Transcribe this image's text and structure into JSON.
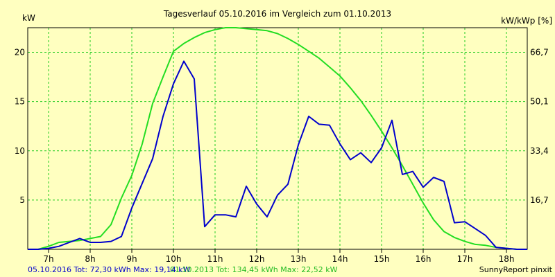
{
  "chart_data": {
    "type": "line",
    "title": "Tagesverlauf 05.10.2016 im Vergleich zum 01.10.2013",
    "ylabel_left": "kW",
    "ylabel_right": "kW/kWp [%]",
    "xlim": [
      6.5,
      18.5
    ],
    "ylim": [
      0,
      22.5
    ],
    "grid": true,
    "x_ticks": [
      {
        "x": 7,
        "label": "7h"
      },
      {
        "x": 8,
        "label": "8h"
      },
      {
        "x": 9,
        "label": "9h"
      },
      {
        "x": 10,
        "label": "10h"
      },
      {
        "x": 11,
        "label": "11h"
      },
      {
        "x": 12,
        "label": "12h"
      },
      {
        "x": 13,
        "label": "13h"
      },
      {
        "x": 14,
        "label": "14h"
      },
      {
        "x": 15,
        "label": "15h"
      },
      {
        "x": 16,
        "label": "16h"
      },
      {
        "x": 17,
        "label": "17h"
      },
      {
        "x": 18,
        "label": "18h"
      }
    ],
    "y_ticks_left": [
      {
        "y": 5,
        "label": "5"
      },
      {
        "y": 10,
        "label": "10"
      },
      {
        "y": 15,
        "label": "15"
      },
      {
        "y": 20,
        "label": "20"
      }
    ],
    "y_ticks_right": [
      {
        "y": 5,
        "label": "16,7"
      },
      {
        "y": 10,
        "label": "33,4"
      },
      {
        "y": 15,
        "label": "50,1"
      },
      {
        "y": 20,
        "label": "66,7"
      }
    ],
    "series": [
      {
        "name": "05.10.2016",
        "color": "#0000cc",
        "x": [
          6.5,
          6.75,
          7.0,
          7.25,
          7.5,
          7.75,
          8.0,
          8.25,
          8.5,
          8.75,
          9.0,
          9.25,
          9.5,
          9.75,
          10.0,
          10.25,
          10.5,
          10.75,
          11.0,
          11.25,
          11.5,
          11.75,
          12.0,
          12.25,
          12.5,
          12.75,
          13.0,
          13.25,
          13.5,
          13.75,
          14.0,
          14.25,
          14.5,
          14.75,
          15.0,
          15.25,
          15.5,
          15.75,
          16.0,
          16.25,
          16.5,
          16.75,
          17.0,
          17.25,
          17.5,
          17.75,
          18.0,
          18.25,
          18.5
        ],
        "y": [
          0,
          0,
          0.1,
          0.3,
          0.7,
          1.1,
          0.7,
          0.7,
          0.8,
          1.3,
          4.2,
          6.7,
          9.2,
          13.5,
          16.8,
          19.1,
          17.3,
          2.3,
          3.5,
          3.5,
          3.3,
          6.4,
          4.6,
          3.3,
          5.5,
          6.6,
          10.6,
          13.5,
          12.7,
          12.6,
          10.7,
          9.1,
          9.8,
          8.8,
          10.3,
          13.1,
          7.6,
          7.9,
          6.3,
          7.3,
          6.9,
          2.7,
          2.8,
          2.1,
          1.4,
          0.2,
          0.1,
          0,
          0
        ]
      },
      {
        "name": "01.10.2013",
        "color": "#22dd22",
        "x": [
          6.5,
          6.75,
          7.0,
          7.25,
          7.5,
          7.75,
          8.0,
          8.25,
          8.5,
          8.75,
          9.0,
          9.25,
          9.5,
          9.75,
          10.0,
          10.25,
          10.5,
          10.75,
          11.0,
          11.25,
          11.5,
          11.75,
          12.0,
          12.25,
          12.5,
          12.75,
          13.0,
          13.25,
          13.5,
          13.75,
          14.0,
          14.25,
          14.5,
          14.75,
          15.0,
          15.25,
          15.5,
          15.75,
          16.0,
          16.25,
          16.5,
          16.75,
          17.0,
          17.25,
          17.5,
          17.75,
          18.0,
          18.25,
          18.5
        ],
        "y": [
          0,
          0,
          0.3,
          0.7,
          0.8,
          0.9,
          1.1,
          1.3,
          2.5,
          5.2,
          7.5,
          10.7,
          14.8,
          17.5,
          20.1,
          20.9,
          21.5,
          22.0,
          22.3,
          22.5,
          22.5,
          22.4,
          22.3,
          22.2,
          21.9,
          21.4,
          20.8,
          20.1,
          19.4,
          18.5,
          17.6,
          16.4,
          15.1,
          13.6,
          12.0,
          10.3,
          8.5,
          6.6,
          4.7,
          3.0,
          1.8,
          1.2,
          0.8,
          0.5,
          0.4,
          0.2,
          0.1,
          0,
          0
        ]
      }
    ],
    "footer": {
      "series1_text": "05.10.2016 Tot: 72,30 kWh Max: 19,14 kW",
      "series2_text": "01.10.2013 Tot: 134,45 kWh Max: 22,52 kW",
      "credit": "SunnyReport pinxit"
    }
  }
}
